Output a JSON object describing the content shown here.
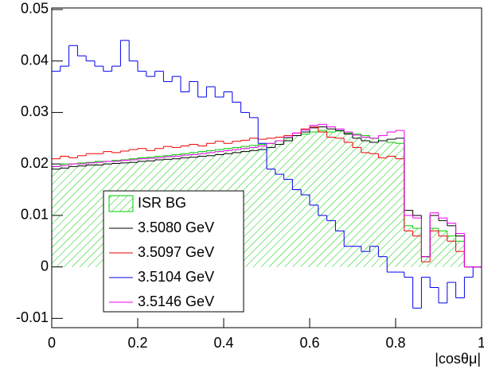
{
  "chart_data": {
    "type": "histogram",
    "xlabel": "|cosθμ|",
    "xlim": [
      0,
      1
    ],
    "ylim": [
      -0.0118,
      0.0503
    ],
    "xticks": [
      0,
      0.2,
      0.4,
      0.6,
      0.8,
      1
    ],
    "yticks": [
      -0.01,
      0,
      0.01,
      0.02,
      0.03,
      0.04,
      0.05
    ],
    "bins": [
      0,
      0.02,
      0.04,
      0.06,
      0.08,
      0.1,
      0.12,
      0.14,
      0.16,
      0.18,
      0.2,
      0.22,
      0.24,
      0.26,
      0.28,
      0.3,
      0.32,
      0.34,
      0.36,
      0.38,
      0.4,
      0.42,
      0.44,
      0.46,
      0.48,
      0.5,
      0.52,
      0.54,
      0.56,
      0.58,
      0.6,
      0.62,
      0.64,
      0.66,
      0.68,
      0.7,
      0.72,
      0.74,
      0.76,
      0.78,
      0.8,
      0.82,
      0.84,
      0.86,
      0.88,
      0.9,
      0.92,
      0.94,
      0.96,
      0.98,
      1
    ],
    "series": [
      {
        "name": "ISR BG",
        "color": "#00cc00",
        "filled": true,
        "values": [
          0.0195,
          0.02,
          0.02,
          0.0202,
          0.0203,
          0.0205,
          0.0205,
          0.0207,
          0.0208,
          0.021,
          0.0212,
          0.0213,
          0.0215,
          0.0216,
          0.0218,
          0.022,
          0.0222,
          0.0224,
          0.0226,
          0.0228,
          0.023,
          0.0232,
          0.0234,
          0.0236,
          0.0238,
          0.024,
          0.0245,
          0.025,
          0.0255,
          0.0258,
          0.0262,
          0.0265,
          0.0262,
          0.0264,
          0.026,
          0.0258,
          0.0255,
          0.025,
          0.0245,
          0.0242,
          0.024,
          0.008,
          0.0075,
          0.002,
          0.0075,
          0.007,
          0.006,
          0.005,
          0,
          0
        ]
      },
      {
        "name": "3.5080 GeV",
        "color": "#000000",
        "values": [
          0.019,
          0.0192,
          0.0195,
          0.0196,
          0.0198,
          0.0198,
          0.02,
          0.0201,
          0.0202,
          0.0203,
          0.0205,
          0.0206,
          0.0208,
          0.0209,
          0.021,
          0.0212,
          0.0213,
          0.0215,
          0.0216,
          0.0218,
          0.022,
          0.0222,
          0.0224,
          0.0226,
          0.0228,
          0.0232,
          0.0238,
          0.0245,
          0.0255,
          0.0262,
          0.027,
          0.0272,
          0.0268,
          0.0265,
          0.0258,
          0.025,
          0.0245,
          0.0242,
          0.0245,
          0.0248,
          0.025,
          0.011,
          0.01,
          0.002,
          0.01,
          0.009,
          0.008,
          0.006,
          0,
          0
        ]
      },
      {
        "name": "3.5097 GeV",
        "color": "#ee0000",
        "values": [
          0.021,
          0.0215,
          0.0212,
          0.0216,
          0.022,
          0.022,
          0.0224,
          0.0222,
          0.0225,
          0.0228,
          0.023,
          0.0226,
          0.023,
          0.0234,
          0.0232,
          0.0235,
          0.0238,
          0.0235,
          0.024,
          0.0244,
          0.024,
          0.0244,
          0.0246,
          0.025,
          0.0248,
          0.025,
          0.0252,
          0.0255,
          0.026,
          0.0268,
          0.0272,
          0.0262,
          0.0252,
          0.025,
          0.0242,
          0.0232,
          0.0222,
          0.022,
          0.0212,
          0.0215,
          0.021,
          0.007,
          0.006,
          0.001,
          0.007,
          0.006,
          0.005,
          0.003,
          0,
          0
        ]
      },
      {
        "name": "3.5104 GeV",
        "color": "#0000ee",
        "values": [
          0.038,
          0.039,
          0.043,
          0.041,
          0.04,
          0.039,
          0.038,
          0.039,
          0.044,
          0.04,
          0.038,
          0.037,
          0.038,
          0.036,
          0.037,
          0.034,
          0.036,
          0.033,
          0.035,
          0.033,
          0.034,
          0.032,
          0.03,
          0.029,
          0.024,
          0.019,
          0.018,
          0.017,
          0.015,
          0.014,
          0.012,
          0.01,
          0.009,
          0.007,
          0.004,
          0.004,
          0.003,
          0.004,
          0.002,
          -0.001,
          -0.001,
          -0.002,
          -0.008,
          -0.002,
          -0.004,
          -0.007,
          -0.003,
          -0.006,
          -0.002,
          0
        ]
      },
      {
        "name": "3.5146 GeV",
        "color": "#ee00ee",
        "values": [
          0.0195,
          0.0197,
          0.02,
          0.02,
          0.0202,
          0.0203,
          0.0205,
          0.0205,
          0.0207,
          0.0208,
          0.021,
          0.0211,
          0.0212,
          0.0214,
          0.0215,
          0.0217,
          0.0218,
          0.022,
          0.0222,
          0.0224,
          0.0226,
          0.0228,
          0.023,
          0.0232,
          0.0235,
          0.024,
          0.0245,
          0.0252,
          0.026,
          0.0266,
          0.0275,
          0.0277,
          0.0272,
          0.0268,
          0.0262,
          0.0256,
          0.0252,
          0.025,
          0.0255,
          0.0262,
          0.0265,
          0.01,
          0.0095,
          0.002,
          0.0105,
          0.0095,
          0.0085,
          0.0065,
          0,
          0
        ]
      }
    ]
  }
}
